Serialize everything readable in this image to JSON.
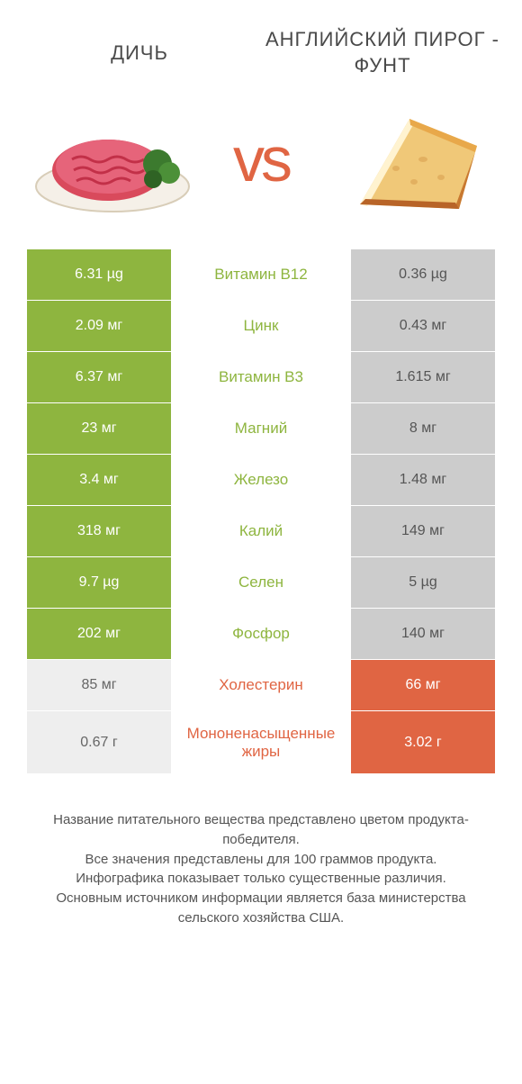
{
  "titles": {
    "left": "ДИЧЬ",
    "right": "АНГЛИЙСКИЙ ПИРОГ - ФУНТ"
  },
  "vs": "vs",
  "colors": {
    "green": "#8eb53f",
    "orange": "#e06543",
    "light_gray": "#eeeeee",
    "gray": "#cccccc",
    "text": "#4a4a4a"
  },
  "rows": [
    {
      "left": "6.31 µg",
      "label": "Витамин B12",
      "right": "0.36 µg",
      "winner": "left"
    },
    {
      "left": "2.09 мг",
      "label": "Цинк",
      "right": "0.43 мг",
      "winner": "left"
    },
    {
      "left": "6.37 мг",
      "label": "Витамин B3",
      "right": "1.615 мг",
      "winner": "left"
    },
    {
      "left": "23 мг",
      "label": "Магний",
      "right": "8 мг",
      "winner": "left"
    },
    {
      "left": "3.4 мг",
      "label": "Железо",
      "right": "1.48 мг",
      "winner": "left"
    },
    {
      "left": "318 мг",
      "label": "Калий",
      "right": "149 мг",
      "winner": "left"
    },
    {
      "left": "9.7 µg",
      "label": "Селен",
      "right": "5 µg",
      "winner": "left"
    },
    {
      "left": "202 мг",
      "label": "Фосфор",
      "right": "140 мг",
      "winner": "left"
    },
    {
      "left": "85 мг",
      "label": "Холестерин",
      "right": "66 мг",
      "winner": "right"
    },
    {
      "left": "0.67 г",
      "label": "Мононенасыщенные жиры",
      "right": "3.02 г",
      "winner": "right"
    }
  ],
  "footer": [
    "Название питательного вещества представлено цветом продукта-победителя.",
    "Все значения представлены для 100 граммов продукта.",
    "Инфографика показывает только существенные различия.",
    "Основным источником информации является база министерства сельского хозяйства США."
  ]
}
